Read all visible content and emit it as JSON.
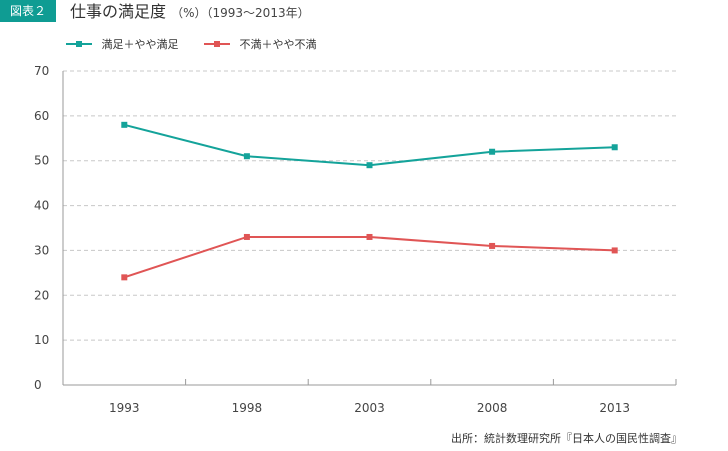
{
  "header": {
    "badge": "図表２",
    "title": "仕事の満足度",
    "title_note": "（%）（1993～2013年）"
  },
  "source": "出所：統計数理研究所『日本人の国民性調査』",
  "colors": {
    "accent": "#0f9c93",
    "series1": "#14a39a",
    "series2": "#e05555"
  },
  "chart_data": {
    "type": "line",
    "categories": [
      "1993",
      "1998",
      "2003",
      "2008",
      "2013"
    ],
    "series": [
      {
        "name": "満足＋やや満足",
        "values": [
          58,
          51,
          49,
          52,
          53
        ],
        "color": "#14a39a"
      },
      {
        "name": "不満＋やや不満",
        "values": [
          24,
          33,
          33,
          31,
          30
        ],
        "color": "#e05555"
      }
    ],
    "ylim": [
      0,
      70
    ],
    "yticks": [
      "0",
      "10",
      "20",
      "30",
      "40",
      "50",
      "60",
      "70"
    ],
    "grid": true,
    "legend": "top-left"
  }
}
